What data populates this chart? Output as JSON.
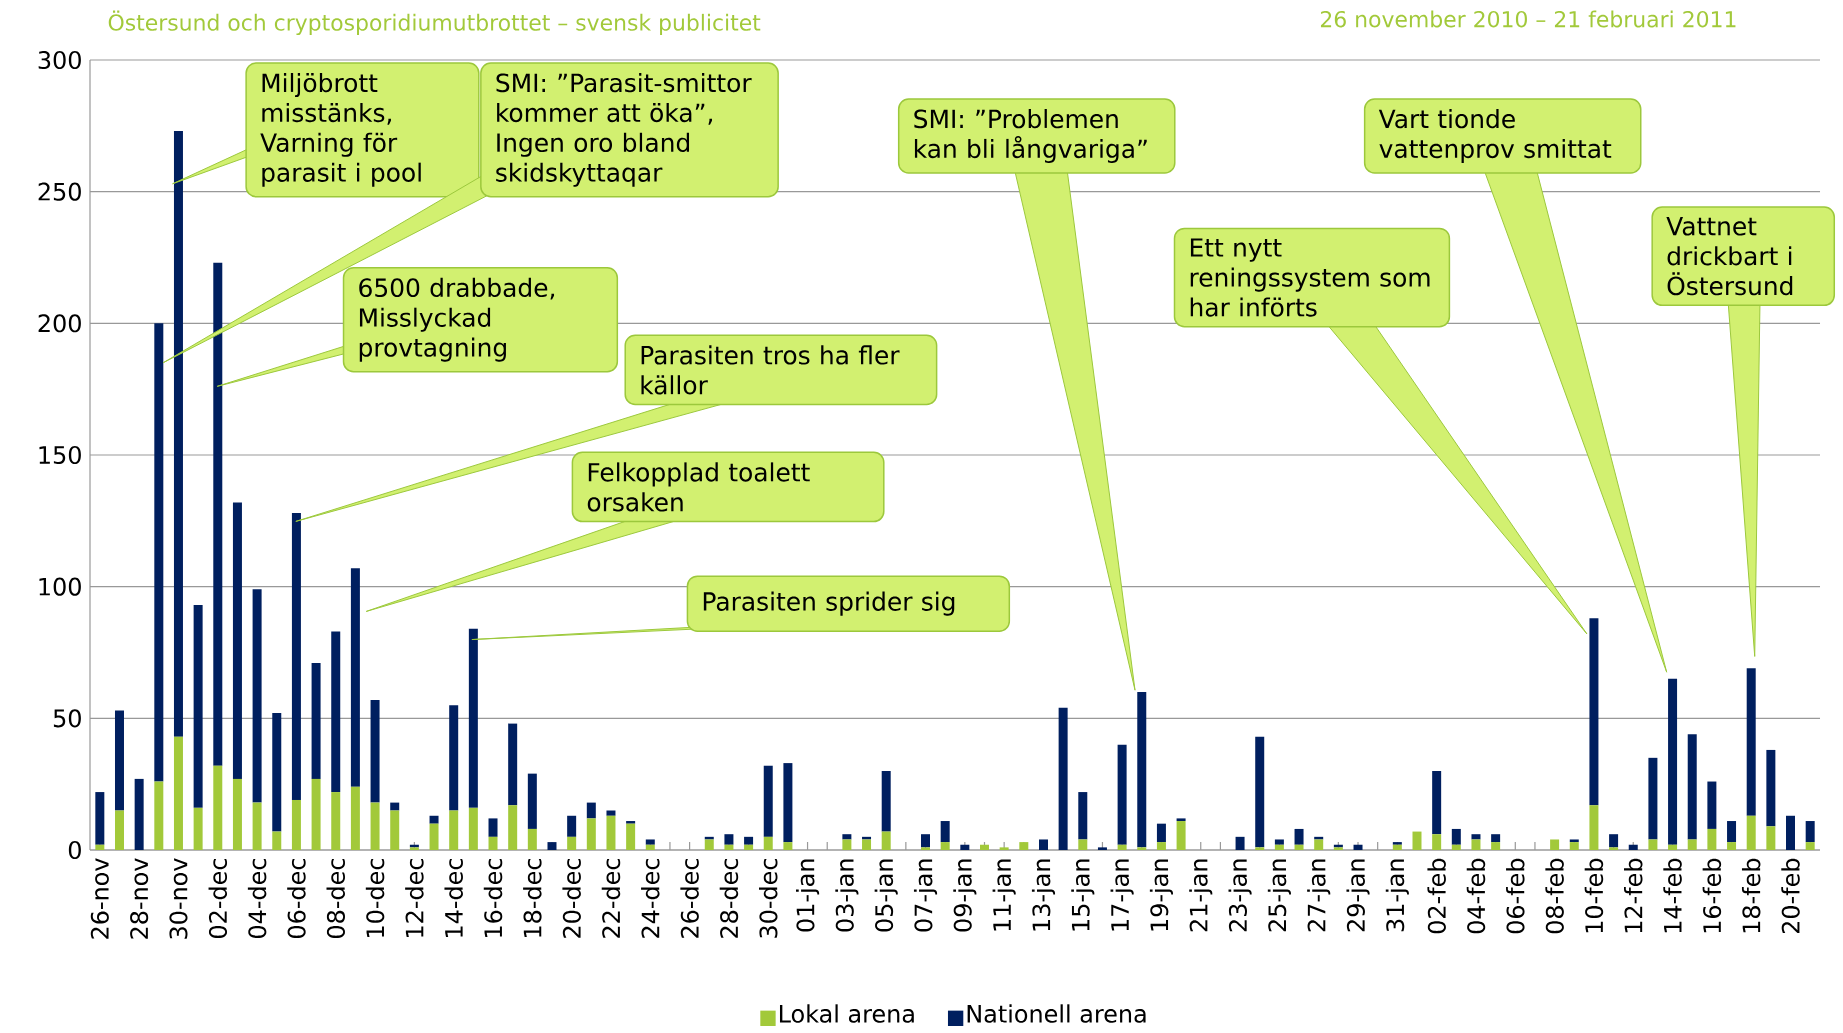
{
  "chart_data": {
    "type": "bar",
    "stacked": true,
    "title": "Östersund och cryptosporidiumutbrottet – svensk publicitet",
    "subtitle": "26 november 2010 – 21 februari 2011",
    "categories": [
      "26-nov",
      null,
      "28-nov",
      null,
      "30-nov",
      null,
      "02-dec",
      null,
      "04-dec",
      null,
      "06-dec",
      null,
      "08-dec",
      null,
      "10-dec",
      null,
      "12-dec",
      null,
      "14-dec",
      null,
      "16-dec",
      null,
      "18-dec",
      null,
      "20-dec",
      null,
      "22-dec",
      null,
      "24-dec",
      null,
      "26-dec",
      null,
      "28-dec",
      null,
      "30-dec",
      null,
      "01-jan",
      null,
      "03-jan",
      null,
      "05-jan",
      null,
      "07-jan",
      null,
      "09-jan",
      null,
      "11-jan",
      null,
      "13-jan",
      null,
      "15-jan",
      null,
      "17-jan",
      null,
      "19-jan",
      null,
      "21-jan",
      null,
      "23-jan",
      null,
      "25-jan",
      null,
      "27-jan",
      null,
      "29-jan",
      null,
      "31-jan",
      null,
      "02-feb",
      null,
      "04-feb",
      null,
      "06-feb",
      null,
      "08-feb",
      null,
      "10-feb",
      null,
      "12-feb",
      null,
      "14-feb",
      null,
      "16-feb",
      null,
      "18-feb",
      null,
      "20-feb",
      null
    ],
    "series": [
      {
        "name": "Lokal arena",
        "color": "#a2c93a",
        "values": [
          2,
          15,
          0,
          26,
          43,
          16,
          32,
          27,
          18,
          7,
          19,
          27,
          22,
          24,
          18,
          15,
          1,
          10,
          15,
          16,
          5,
          17,
          8,
          0,
          5,
          12,
          13,
          10,
          2,
          0,
          0,
          4,
          2,
          2,
          5,
          3,
          0,
          0,
          4,
          4,
          7,
          0,
          1,
          3,
          0,
          2,
          1,
          3,
          0,
          0,
          4,
          0,
          2,
          1,
          3,
          11,
          0,
          0,
          0,
          1,
          2,
          2,
          4,
          1,
          0,
          0,
          2,
          7,
          6,
          2,
          4,
          3,
          0,
          0,
          4,
          3,
          17,
          1,
          0,
          4,
          2,
          4,
          8,
          3,
          13,
          9,
          0,
          3
        ]
      },
      {
        "name": "Nationell arena",
        "color": "#001f5f",
        "values": [
          20,
          38,
          27,
          174,
          230,
          77,
          191,
          105,
          81,
          45,
          109,
          44,
          61,
          83,
          39,
          3,
          1,
          3,
          40,
          68,
          7,
          31,
          21,
          3,
          8,
          6,
          2,
          1,
          2,
          0,
          0,
          1,
          4,
          3,
          27,
          30,
          0,
          0,
          2,
          1,
          23,
          0,
          5,
          8,
          2,
          0,
          0,
          0,
          4,
          54,
          18,
          1,
          38,
          59,
          7,
          1,
          0,
          0,
          5,
          42,
          2,
          6,
          1,
          1,
          2,
          0,
          1,
          0,
          24,
          6,
          2,
          3,
          0,
          0,
          0,
          1,
          71,
          5,
          2,
          31,
          63,
          40,
          18,
          8,
          56,
          29,
          13,
          8
        ]
      }
    ],
    "ylim": [
      0,
      300
    ],
    "yticks": [
      0,
      50,
      100,
      150,
      200,
      250,
      300
    ],
    "grid": "y",
    "legend": "bottom",
    "annotations": [
      "Miljöbrott misstänks, Varning för parasit i pool",
      "SMI: ”Parasit-smittor kommer att öka”, Ingen oro bland skidskyttaqar",
      "6500 drabbade, Misslyckad provtagning",
      "Parasiten tros ha fler källor",
      "Felkopplad toalett orsaken",
      "Parasiten sprider sig",
      "SMI: ”Problemen kan bli långvariga”",
      "Ett nytt reningssystem som har införts",
      "Vart tionde vattenprov smittat",
      "Vattnet drickbart i Östersund"
    ]
  }
}
